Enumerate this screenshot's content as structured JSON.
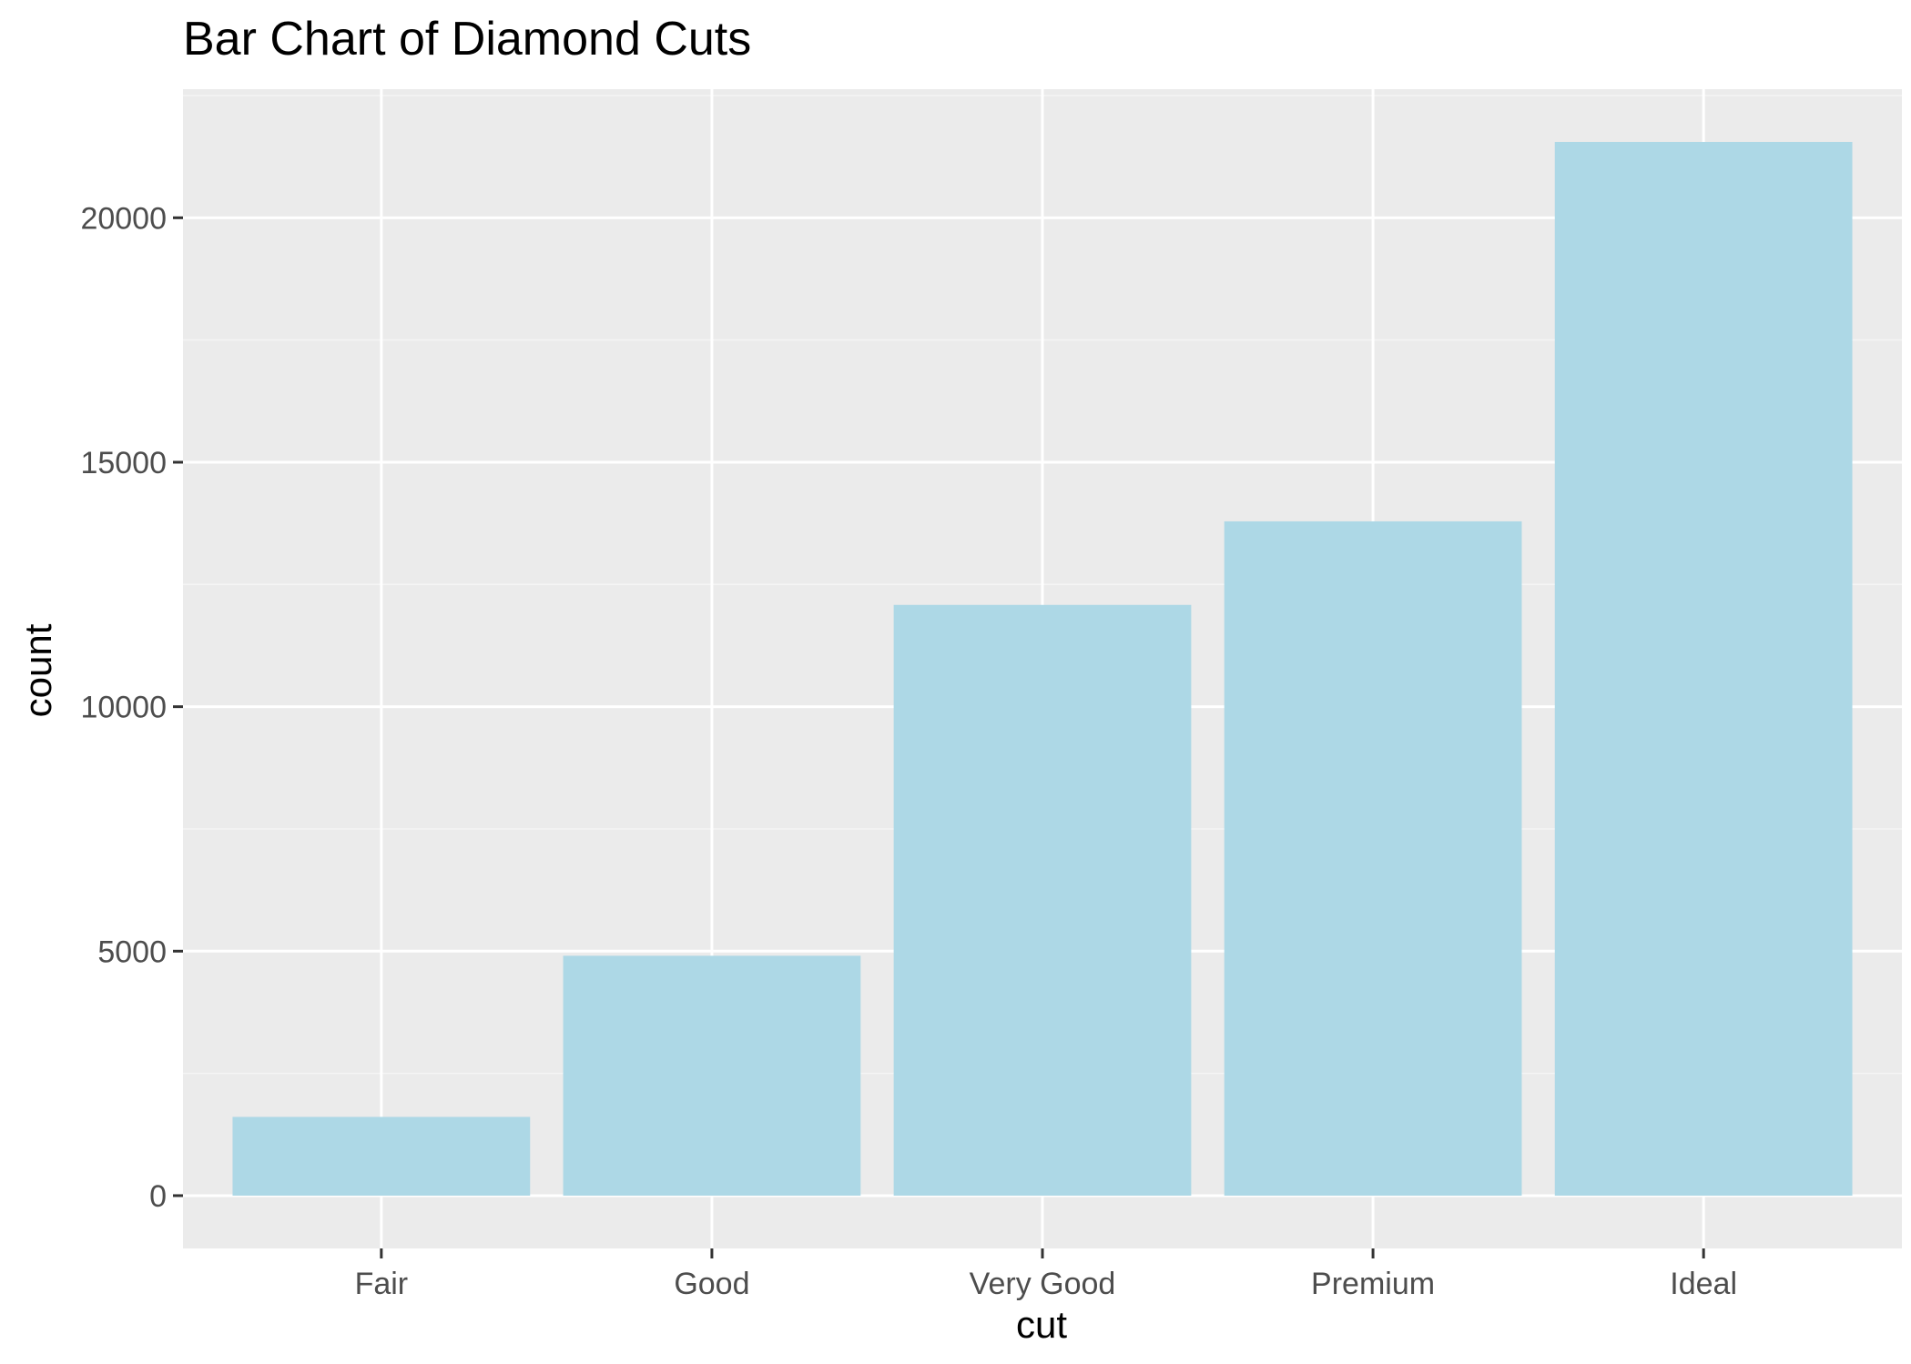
{
  "chart_data": {
    "type": "bar",
    "title": "Bar Chart of Diamond Cuts",
    "xlabel": "cut",
    "ylabel": "count",
    "categories": [
      "Fair",
      "Good",
      "Very Good",
      "Premium",
      "Ideal"
    ],
    "values": [
      1610,
      4906,
      12082,
      13791,
      21551
    ],
    "ylim": [
      -1080,
      22630
    ],
    "yticks": [
      0,
      5000,
      10000,
      15000,
      20000
    ],
    "ytick_labels": [
      "0",
      "5000",
      "10000",
      "15000",
      "20000"
    ],
    "grid": true,
    "legend": "none"
  },
  "colors": {
    "bar_fill": "#add8e6",
    "panel_background": "#ebebeb",
    "grid_major": "#ffffff",
    "grid_minor": "#f5f5f5",
    "tick_label": "#4d4d4d",
    "tick_mark": "#333333",
    "text": "#000000"
  }
}
